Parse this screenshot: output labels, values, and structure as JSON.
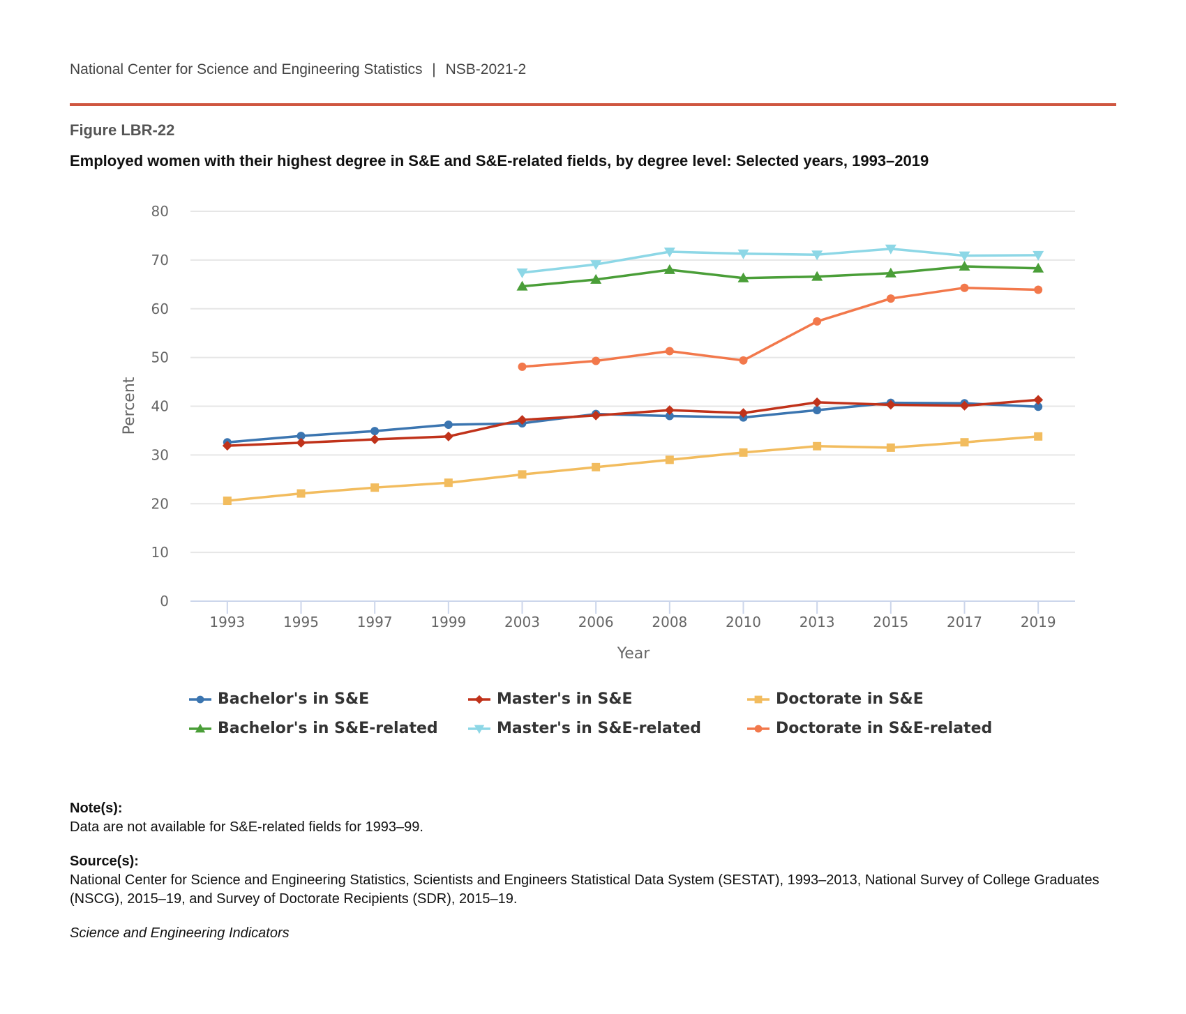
{
  "header": {
    "org": "National Center for Science and Engineering Statistics",
    "separator": "|",
    "report": "NSB-2021-2",
    "rule_color": "#cf5640"
  },
  "figure": {
    "number": "Figure LBR-22",
    "title": "Employed women with their highest degree in S&E and S&E-related fields, by degree level: Selected years, 1993–2019"
  },
  "chart_data": {
    "type": "line",
    "title": "Employed women with their highest degree in S&E and S&E-related fields, by degree level: Selected years, 1993–2019",
    "xlabel": "Year",
    "ylabel": "Percent",
    "categories": [
      "1993",
      "1995",
      "1997",
      "1999",
      "2003",
      "2006",
      "2008",
      "2010",
      "2013",
      "2015",
      "2017",
      "2019"
    ],
    "ylim": [
      0,
      80
    ],
    "yticks": [
      "0",
      "10",
      "20",
      "30",
      "40",
      "50",
      "60",
      "70",
      "80"
    ],
    "grid": true,
    "legend_position": "bottom",
    "series": [
      {
        "name": "Bachelor's in S&E",
        "color": "#3b75b0",
        "marker": "circle",
        "values": [
          32.6,
          33.9,
          34.9,
          36.2,
          36.5,
          38.4,
          38.0,
          37.7,
          39.2,
          40.7,
          40.6,
          39.9
        ]
      },
      {
        "name": "Master's in S&E",
        "color": "#c0321a",
        "marker": "diamond",
        "values": [
          31.9,
          32.5,
          33.2,
          33.8,
          37.2,
          38.1,
          39.2,
          38.6,
          40.8,
          40.3,
          40.1,
          41.3
        ]
      },
      {
        "name": "Doctorate in S&E",
        "color": "#f2bc5e",
        "marker": "square",
        "values": [
          20.6,
          22.1,
          23.3,
          24.3,
          26.0,
          27.5,
          29.0,
          30.5,
          31.8,
          31.5,
          32.6,
          33.8
        ]
      },
      {
        "name": "Bachelor's in S&E-related",
        "color": "#4a9e38",
        "marker": "triangle-up",
        "values": [
          null,
          null,
          null,
          null,
          64.6,
          66.0,
          68.0,
          66.3,
          66.6,
          67.3,
          68.7,
          68.3
        ]
      },
      {
        "name": "Master's in S&E-related",
        "color": "#8dd7e6",
        "marker": "triangle-down",
        "values": [
          null,
          null,
          null,
          null,
          67.4,
          69.1,
          71.7,
          71.3,
          71.1,
          72.3,
          70.9,
          71.0
        ]
      },
      {
        "name": "Doctorate in S&E-related",
        "color": "#f2784b",
        "marker": "circle",
        "values": [
          null,
          null,
          null,
          null,
          48.1,
          49.3,
          51.3,
          49.4,
          57.4,
          62.1,
          64.3,
          63.9
        ]
      }
    ]
  },
  "notes": {
    "notes_label": "Note(s):",
    "notes_text": "Data are not available for S&E-related fields for 1993–99.",
    "source_label": "Source(s):",
    "source_text": "National Center for Science and Engineering Statistics, Scientists and Engineers Statistical Data System (SESTAT), 1993–2013, National Survey of College Graduates (NSCG), 2015–19, and Survey of Doctorate Recipients (SDR), 2015–19.",
    "publication": "Science and Engineering Indicators"
  }
}
